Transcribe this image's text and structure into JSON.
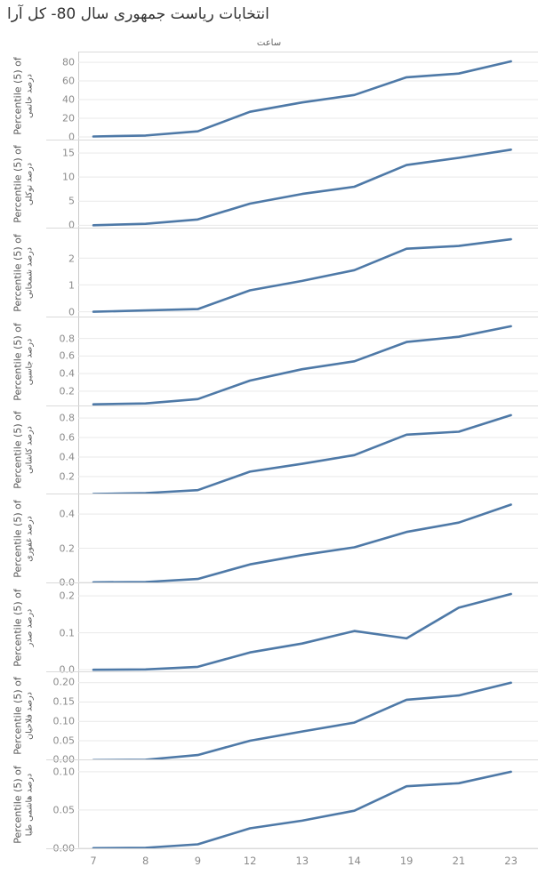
{
  "colors": {
    "line": "#4e79a7",
    "grid": "#e9e9e9",
    "axis": "#c9c9c9",
    "divider": "#dadada",
    "tick_text": "#8b8b8b",
    "title_text": "#333333"
  },
  "chart_data": {
    "type": "line",
    "title": "انتخابات ریاست جمهوری سال 80- کل آرا",
    "xlabel": "ساعت",
    "x": [
      "7",
      "8",
      "9",
      "12",
      "13",
      "14",
      "19",
      "21",
      "23"
    ],
    "legend": "none",
    "grid": "horizontal",
    "panels": [
      {
        "ylabel_en": "Percentile (5) of",
        "ylabel_fa": "درصد خاتمی",
        "yticks": [
          "0",
          "20",
          "40",
          "60",
          "80"
        ],
        "ylim": [
          -3.5,
          91.5
        ],
        "values": [
          0.5,
          1.5,
          6,
          27,
          37,
          45,
          64,
          68,
          81
        ]
      },
      {
        "ylabel_en": "Percentile (5) of",
        "ylabel_fa": "درصد توکلی",
        "yticks": [
          "0",
          "5",
          "10",
          "15"
        ],
        "ylim": [
          -0.8,
          17.6
        ],
        "values": [
          0,
          0.3,
          1.2,
          4.5,
          6.5,
          8,
          12.5,
          14,
          15.7
        ]
      },
      {
        "ylabel_en": "Percentile (5) of",
        "ylabel_fa": "درصد شمخانی",
        "yticks": [
          "0",
          "1",
          "2"
        ],
        "ylim": [
          -0.2,
          3.1
        ],
        "values": [
          0,
          0.05,
          0.1,
          0.8,
          1.15,
          1.55,
          2.35,
          2.45,
          2.7
        ]
      },
      {
        "ylabel_en": "Percentile (5) of",
        "ylabel_fa": "درصد جاسبی",
        "yticks": [
          "0.2",
          "0.4",
          "0.6",
          "0.8"
        ],
        "ylim": [
          0.03,
          1.04
        ],
        "values": [
          0.05,
          0.06,
          0.11,
          0.32,
          0.45,
          0.54,
          0.76,
          0.82,
          0.94
        ]
      },
      {
        "ylabel_en": "Percentile (5) of",
        "ylabel_fa": "درصد کاشانی",
        "yticks": [
          "0.2",
          "0.4",
          "0.6",
          "0.8"
        ],
        "ylim": [
          0.01,
          0.92
        ],
        "values": [
          0.02,
          0.03,
          0.06,
          0.25,
          0.33,
          0.42,
          0.63,
          0.66,
          0.83
        ]
      },
      {
        "ylabel_en": "Percentile (5) of",
        "ylabel_fa": "درصد غفوری",
        "yticks": [
          "0.0",
          "0.2",
          "0.4"
        ],
        "ylim": [
          -0.004,
          0.515
        ],
        "values": [
          0,
          0.002,
          0.02,
          0.105,
          0.16,
          0.205,
          0.295,
          0.35,
          0.455
        ]
      },
      {
        "ylabel_en": "Percentile (5) of",
        "ylabel_fa": "درصد صدر",
        "yticks": [
          "0.0",
          "0.1",
          "0.2"
        ],
        "ylim": [
          -0.006,
          0.234
        ],
        "values": [
          0,
          0.001,
          0.008,
          0.047,
          0.071,
          0.105,
          0.085,
          0.168,
          0.205
        ]
      },
      {
        "ylabel_en": "Percentile (5) of",
        "ylabel_fa": "درصد فلاحیان",
        "yticks": [
          "0.00",
          "0.05",
          "0.10",
          "0.15",
          "0.20"
        ],
        "ylim": [
          -0.002,
          0.227
        ],
        "values": [
          0,
          0.001,
          0.013,
          0.05,
          0.074,
          0.097,
          0.156,
          0.167,
          0.2
        ]
      },
      {
        "ylabel_en": "Percentile (5) of",
        "ylabel_fa": "درصد هاشمی طبا",
        "yticks": [
          "0.00",
          "0.05",
          "0.10"
        ],
        "ylim": [
          -0.001,
          0.115
        ],
        "values": [
          0,
          0.0005,
          0.005,
          0.026,
          0.036,
          0.049,
          0.081,
          0.085,
          0.1
        ]
      }
    ]
  }
}
